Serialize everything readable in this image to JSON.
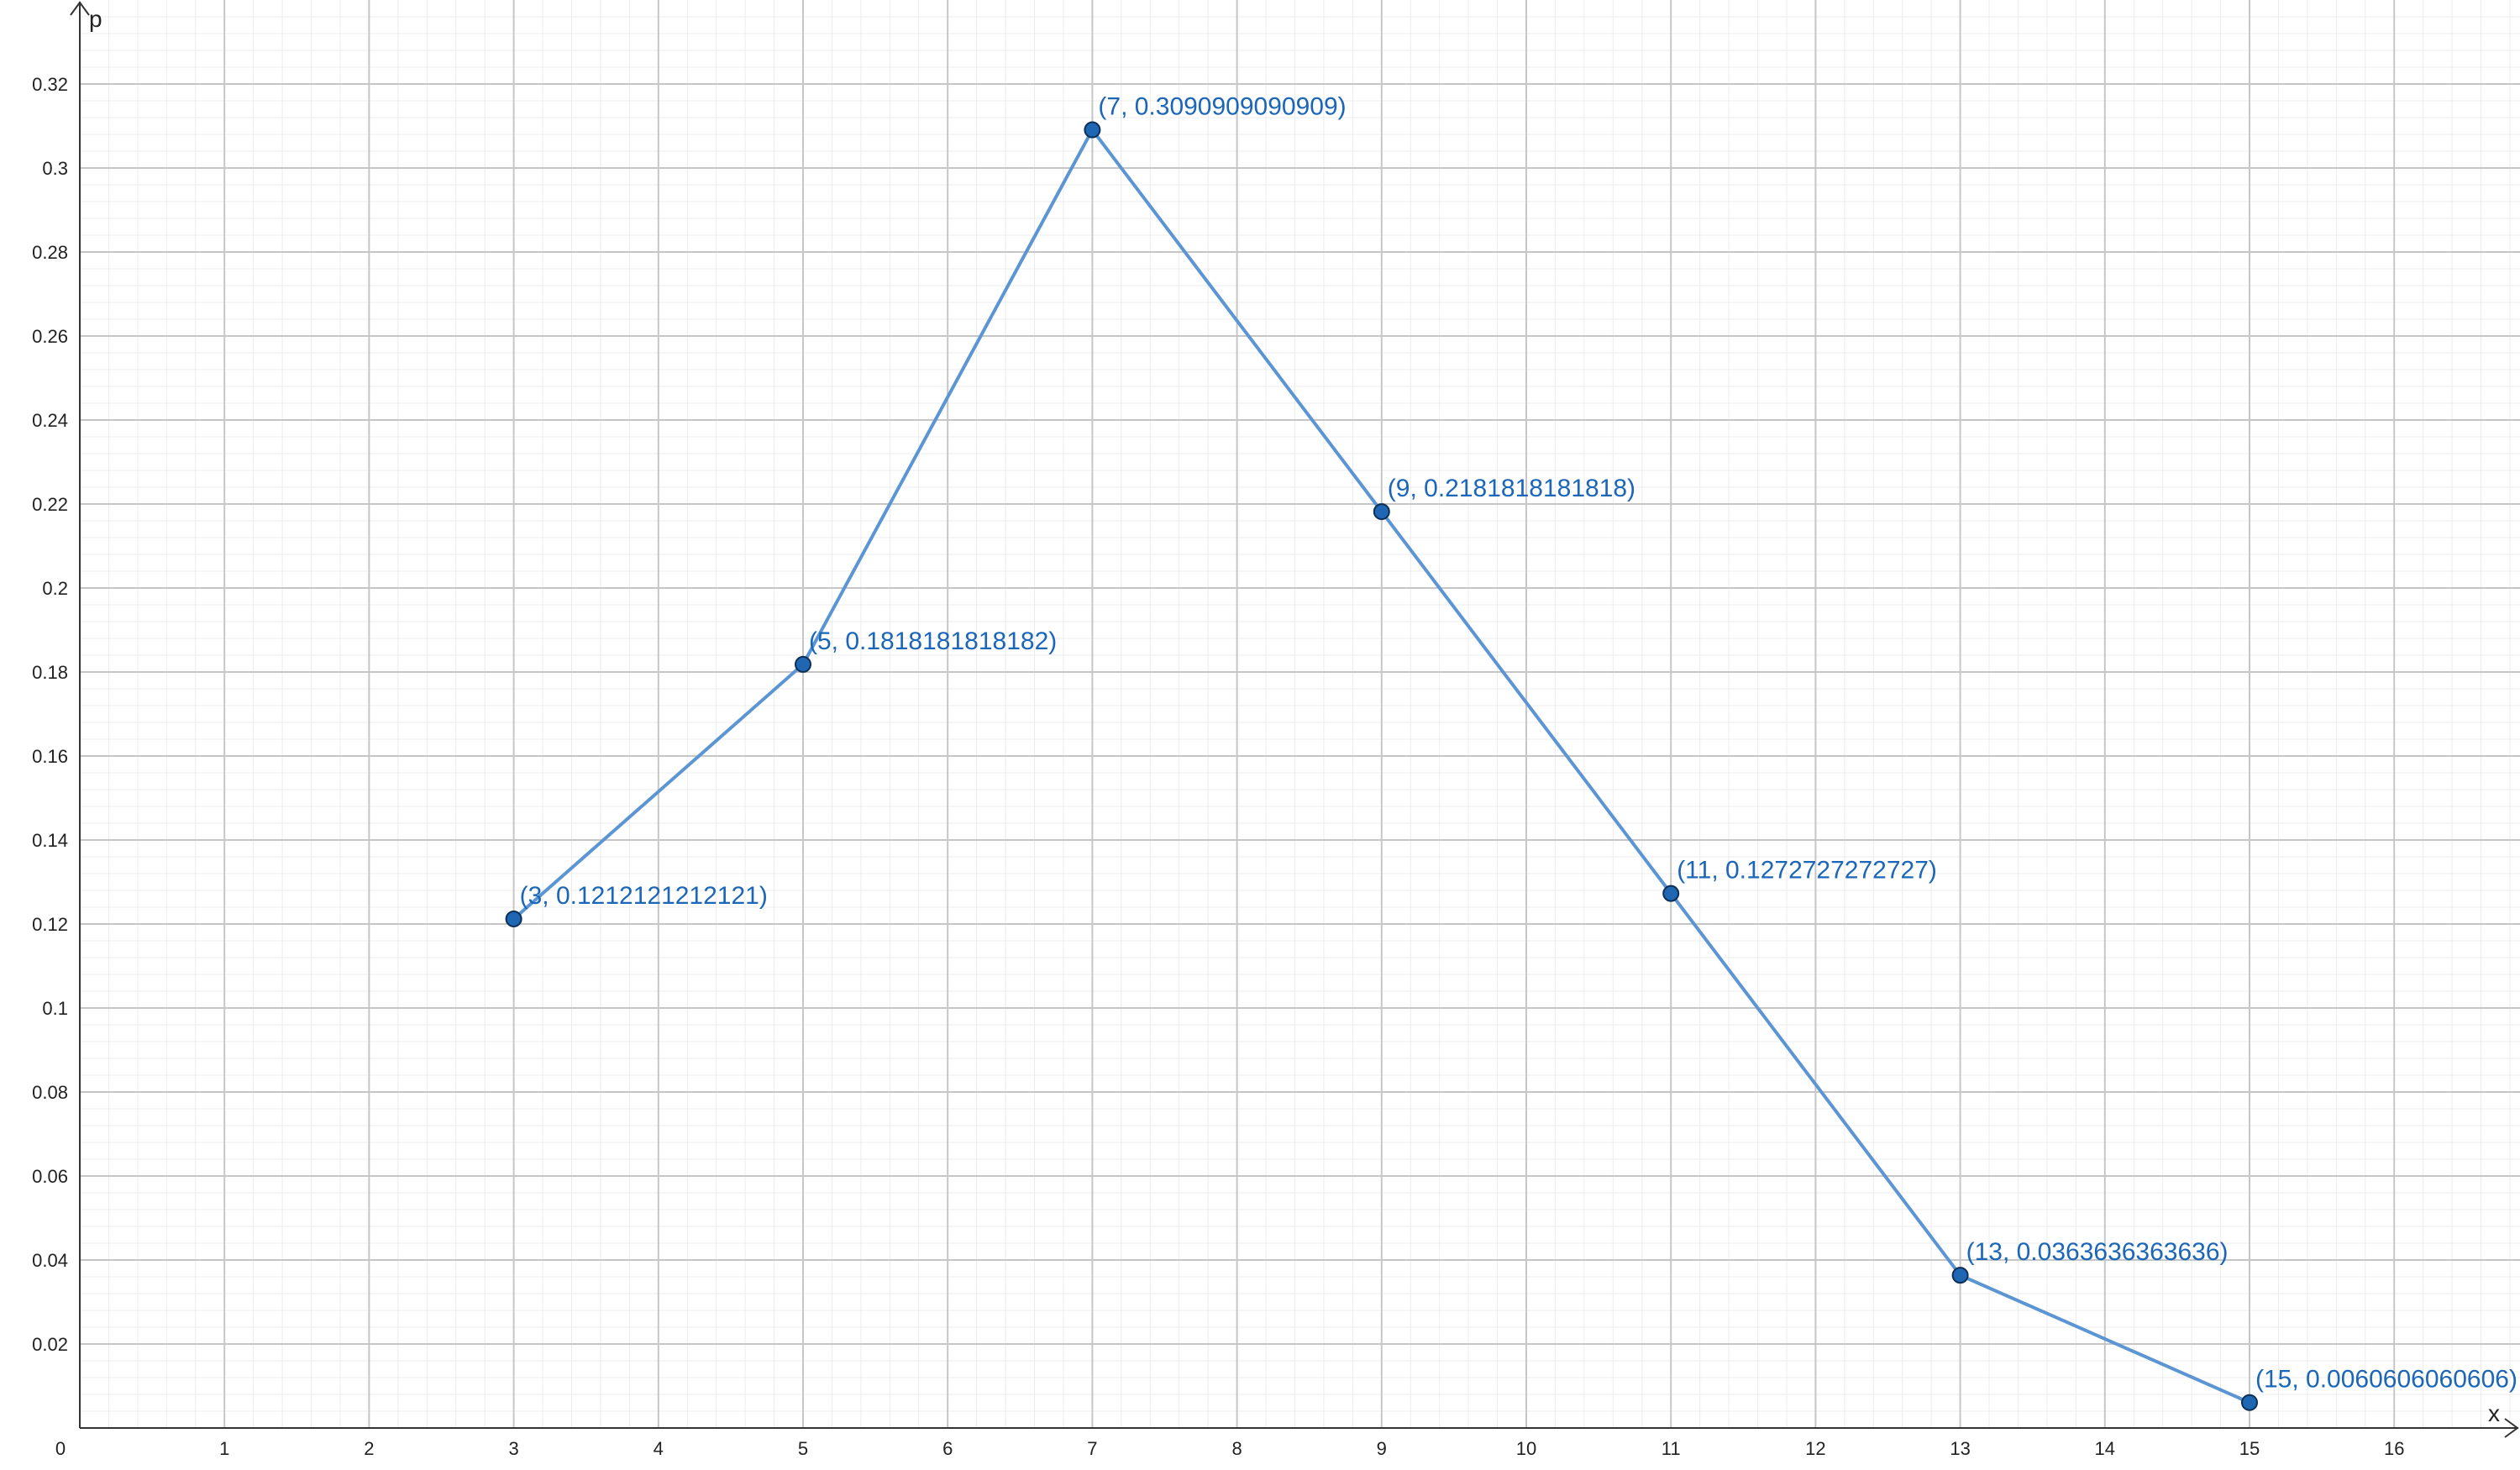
{
  "chart_data": {
    "type": "line",
    "title": "",
    "xlabel": "x",
    "ylabel": "p",
    "xlim": [
      0,
      17.2
    ],
    "ylim": [
      0,
      0.338
    ],
    "x_ticks": [
      "1",
      "2",
      "3",
      "4",
      "5",
      "6",
      "7",
      "8",
      "9",
      "10",
      "11",
      "12",
      "13",
      "14",
      "15",
      "16"
    ],
    "y_ticks": [
      "0.02",
      "0.04",
      "0.06",
      "0.08",
      "0.1",
      "0.12",
      "0.14",
      "0.16",
      "0.18",
      "0.2",
      "0.22",
      "0.24",
      "0.26",
      "0.28",
      "0.3",
      "0.32"
    ],
    "origin_label": "0",
    "grid": true,
    "line_color": "#5b95d3",
    "point_color": "#1f66b3",
    "label_color": "#1b66b8",
    "points": [
      {
        "x": 3,
        "y": 0.1212121212121,
        "label": "(3, 0.1212121212121)"
      },
      {
        "x": 5,
        "y": 0.1818181818182,
        "label": "(5, 0.1818181818182)"
      },
      {
        "x": 7,
        "y": 0.3090909090909,
        "label": "(7, 0.3090909090909)"
      },
      {
        "x": 9,
        "y": 0.2181818181818,
        "label": "(9, 0.2181818181818)"
      },
      {
        "x": 11,
        "y": 0.1272727272727,
        "label": "(11, 0.1272727272727)"
      },
      {
        "x": 13,
        "y": 0.0363636363636,
        "label": "(13, 0.0363636363636)"
      },
      {
        "x": 15,
        "y": 0.0060606060606,
        "label": "(15, 0.0060606060606)"
      }
    ]
  }
}
